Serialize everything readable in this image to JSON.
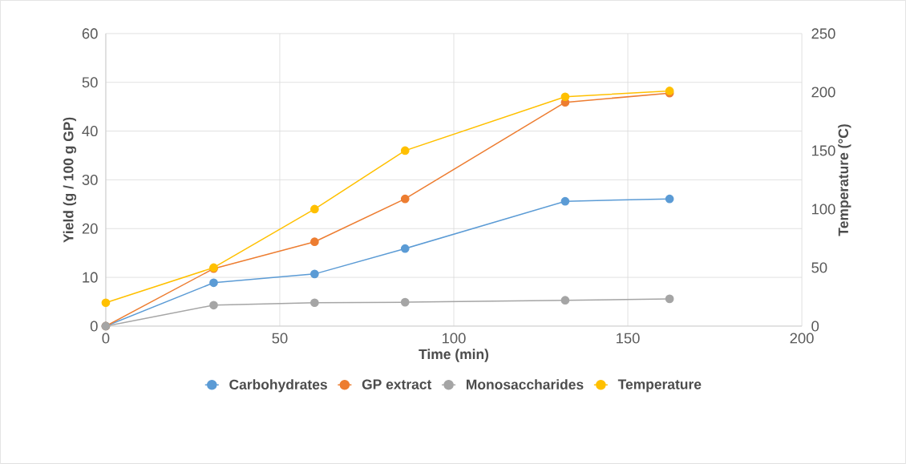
{
  "chart_data": {
    "type": "line",
    "xlabel": "Time (min)",
    "ylabel": "Yield (g / 100 g GP)",
    "y2label": "Temperature (°C)",
    "x": [
      0,
      31,
      60,
      86,
      132,
      162
    ],
    "series": [
      {
        "name": "Carbohydrates",
        "color": "#5b9bd5",
        "values": [
          0,
          8.9,
          10.7,
          15.9,
          25.6,
          26.1
        ]
      },
      {
        "name": "GP extract",
        "color": "#ed7d31",
        "values": [
          0,
          11.8,
          17.3,
          26.1,
          45.9,
          47.8
        ]
      },
      {
        "name": "Monosaccharides",
        "color": "#a5a5a5",
        "values": [
          0,
          4.3,
          4.8,
          4.9,
          5.3,
          5.6
        ]
      },
      {
        "name": "Temperature",
        "color": "#ffc000",
        "axis": "y2",
        "values": [
          20,
          50,
          100,
          150,
          196,
          201
        ]
      }
    ],
    "xlim": [
      0,
      200
    ],
    "xticks": [
      0,
      50,
      100,
      150,
      200
    ],
    "ylim": [
      0,
      60
    ],
    "yticks": [
      0,
      10,
      20,
      30,
      40,
      50,
      60
    ],
    "y2lim": [
      0,
      250
    ],
    "y2ticks": [
      0,
      50,
      100,
      150,
      200,
      250
    ],
    "grid": true,
    "legend": "bottom",
    "marker": "circle",
    "line_style": "solid"
  }
}
